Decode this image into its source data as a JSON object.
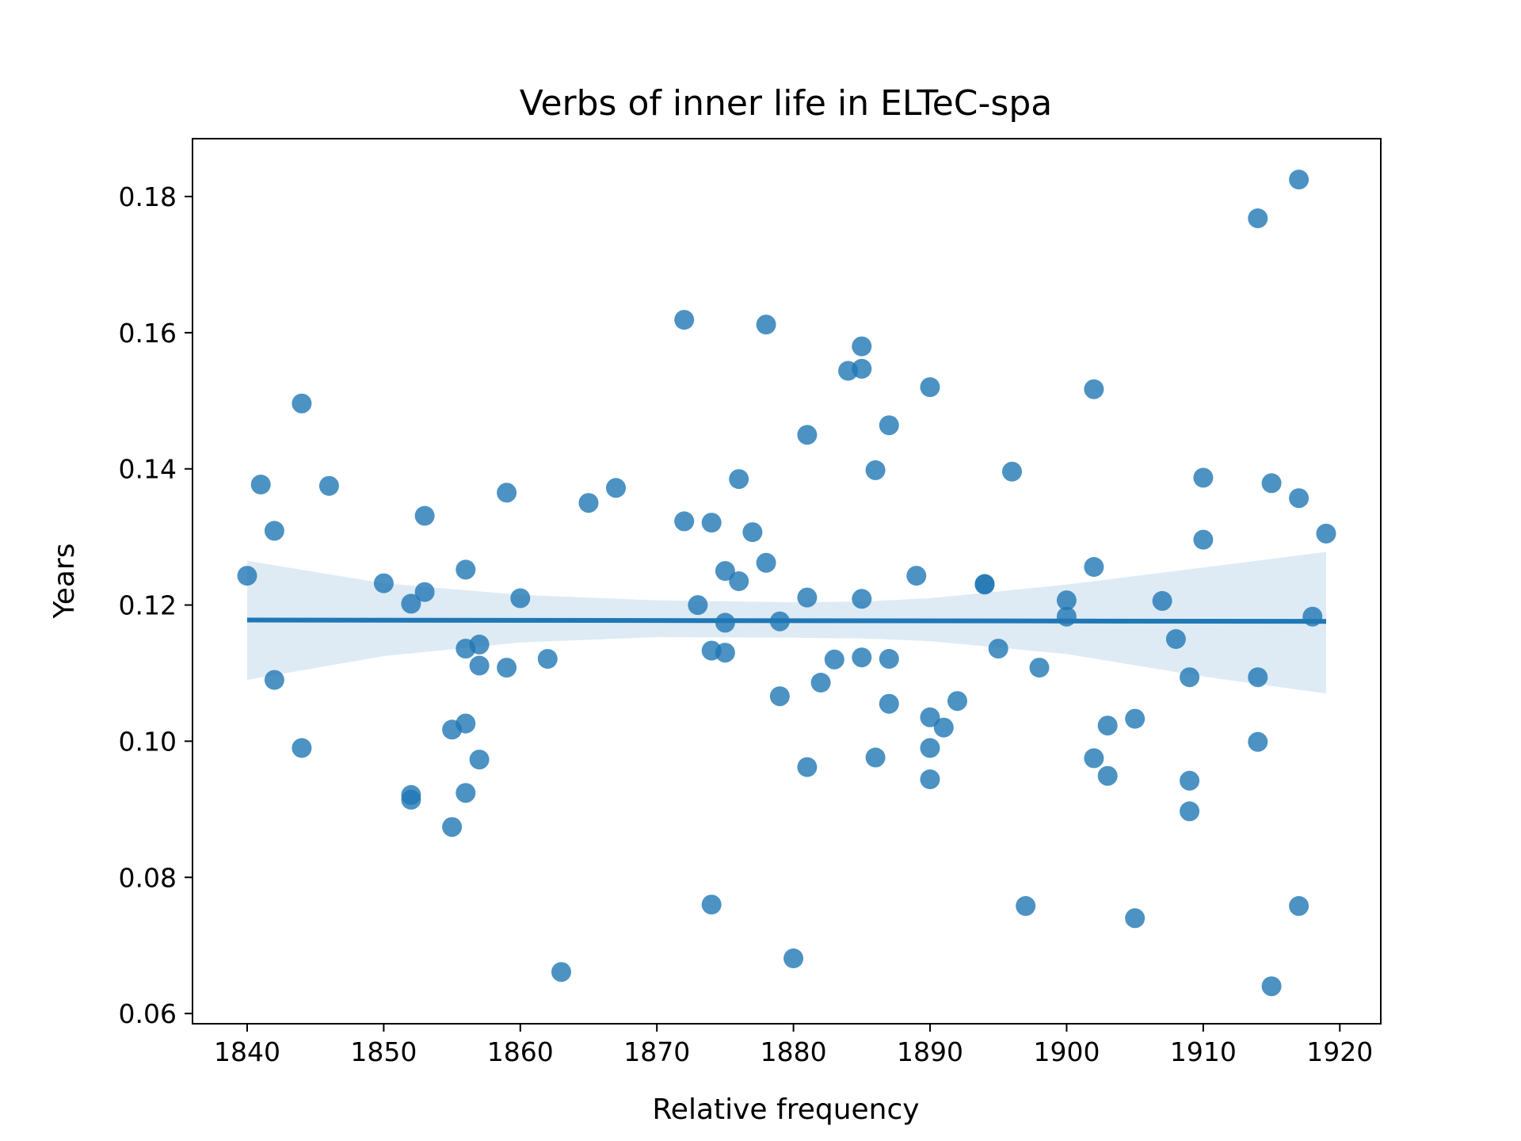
{
  "chart_data": {
    "type": "scatter",
    "title": "Verbs of inner life in ELTeC-spa",
    "xlabel": "Relative frequency",
    "ylabel": "Years",
    "xlim": [
      1836,
      1923
    ],
    "ylim": [
      0.0585,
      0.1885
    ],
    "xticks": [
      1840,
      1850,
      1860,
      1870,
      1880,
      1890,
      1900,
      1910,
      1920
    ],
    "yticks": [
      0.06,
      0.08,
      0.1,
      0.12,
      0.14,
      0.16,
      0.18
    ],
    "ytick_labels": [
      "0.06",
      "0.08",
      "0.10",
      "0.12",
      "0.14",
      "0.16",
      "0.18"
    ],
    "grid": false,
    "colors": {
      "points": "#1f77b4",
      "line": "#1f77b4",
      "band": "#1f77b4"
    },
    "regression": {
      "x": [
        1840,
        1919
      ],
      "y": [
        0.1178,
        0.1176
      ]
    },
    "confidence_band": {
      "x": [
        1840,
        1850,
        1860,
        1870,
        1880,
        1885,
        1890,
        1900,
        1910,
        1919
      ],
      "lower": [
        0.109,
        0.1125,
        0.1145,
        0.1153,
        0.1152,
        0.1151,
        0.1147,
        0.1128,
        0.1095,
        0.107
      ],
      "upper": [
        0.1265,
        0.1232,
        0.1215,
        0.1207,
        0.1204,
        0.1205,
        0.121,
        0.123,
        0.1255,
        0.1278
      ]
    },
    "points": [
      {
        "x": 1840,
        "y": 0.1243
      },
      {
        "x": 1841,
        "y": 0.1377
      },
      {
        "x": 1842,
        "y": 0.1309
      },
      {
        "x": 1842,
        "y": 0.109
      },
      {
        "x": 1844,
        "y": 0.1496
      },
      {
        "x": 1844,
        "y": 0.099
      },
      {
        "x": 1846,
        "y": 0.1375
      },
      {
        "x": 1850,
        "y": 0.1232
      },
      {
        "x": 1852,
        "y": 0.1202
      },
      {
        "x": 1852,
        "y": 0.0921
      },
      {
        "x": 1852,
        "y": 0.0914
      },
      {
        "x": 1853,
        "y": 0.1331
      },
      {
        "x": 1853,
        "y": 0.1219
      },
      {
        "x": 1855,
        "y": 0.1017
      },
      {
        "x": 1855,
        "y": 0.0874
      },
      {
        "x": 1856,
        "y": 0.1252
      },
      {
        "x": 1856,
        "y": 0.1136
      },
      {
        "x": 1856,
        "y": 0.1026
      },
      {
        "x": 1856,
        "y": 0.0924
      },
      {
        "x": 1857,
        "y": 0.1142
      },
      {
        "x": 1857,
        "y": 0.1111
      },
      {
        "x": 1857,
        "y": 0.0973
      },
      {
        "x": 1859,
        "y": 0.1365
      },
      {
        "x": 1859,
        "y": 0.1108
      },
      {
        "x": 1860,
        "y": 0.121
      },
      {
        "x": 1862,
        "y": 0.1121
      },
      {
        "x": 1863,
        "y": 0.0661
      },
      {
        "x": 1865,
        "y": 0.135
      },
      {
        "x": 1867,
        "y": 0.1372
      },
      {
        "x": 1872,
        "y": 0.1619
      },
      {
        "x": 1872,
        "y": 0.1323
      },
      {
        "x": 1873,
        "y": 0.12
      },
      {
        "x": 1874,
        "y": 0.1321
      },
      {
        "x": 1874,
        "y": 0.1133
      },
      {
        "x": 1874,
        "y": 0.076
      },
      {
        "x": 1875,
        "y": 0.125
      },
      {
        "x": 1875,
        "y": 0.1174
      },
      {
        "x": 1875,
        "y": 0.113
      },
      {
        "x": 1876,
        "y": 0.1385
      },
      {
        "x": 1876,
        "y": 0.1235
      },
      {
        "x": 1877,
        "y": 0.1307
      },
      {
        "x": 1878,
        "y": 0.1612
      },
      {
        "x": 1878,
        "y": 0.1262
      },
      {
        "x": 1879,
        "y": 0.1176
      },
      {
        "x": 1879,
        "y": 0.1066
      },
      {
        "x": 1880,
        "y": 0.0681
      },
      {
        "x": 1881,
        "y": 0.145
      },
      {
        "x": 1881,
        "y": 0.1211
      },
      {
        "x": 1881,
        "y": 0.0962
      },
      {
        "x": 1882,
        "y": 0.1086
      },
      {
        "x": 1883,
        "y": 0.112
      },
      {
        "x": 1884,
        "y": 0.1544
      },
      {
        "x": 1885,
        "y": 0.158
      },
      {
        "x": 1885,
        "y": 0.1547
      },
      {
        "x": 1885,
        "y": 0.1209
      },
      {
        "x": 1885,
        "y": 0.1123
      },
      {
        "x": 1886,
        "y": 0.1398
      },
      {
        "x": 1886,
        "y": 0.0976
      },
      {
        "x": 1887,
        "y": 0.1464
      },
      {
        "x": 1887,
        "y": 0.1121
      },
      {
        "x": 1887,
        "y": 0.1055
      },
      {
        "x": 1889,
        "y": 0.1243
      },
      {
        "x": 1890,
        "y": 0.152
      },
      {
        "x": 1890,
        "y": 0.1035
      },
      {
        "x": 1890,
        "y": 0.099
      },
      {
        "x": 1890,
        "y": 0.0944
      },
      {
        "x": 1891,
        "y": 0.102
      },
      {
        "x": 1892,
        "y": 0.1059
      },
      {
        "x": 1894,
        "y": 0.1231
      },
      {
        "x": 1894,
        "y": 0.123
      },
      {
        "x": 1895,
        "y": 0.1136
      },
      {
        "x": 1896,
        "y": 0.1396
      },
      {
        "x": 1897,
        "y": 0.0758
      },
      {
        "x": 1898,
        "y": 0.1108
      },
      {
        "x": 1900,
        "y": 0.1207
      },
      {
        "x": 1900,
        "y": 0.1183
      },
      {
        "x": 1902,
        "y": 0.1517
      },
      {
        "x": 1902,
        "y": 0.1256
      },
      {
        "x": 1902,
        "y": 0.0975
      },
      {
        "x": 1903,
        "y": 0.1023
      },
      {
        "x": 1903,
        "y": 0.0949
      },
      {
        "x": 1905,
        "y": 0.1033
      },
      {
        "x": 1905,
        "y": 0.074
      },
      {
        "x": 1907,
        "y": 0.1206
      },
      {
        "x": 1908,
        "y": 0.115
      },
      {
        "x": 1909,
        "y": 0.1094
      },
      {
        "x": 1909,
        "y": 0.0942
      },
      {
        "x": 1909,
        "y": 0.0897
      },
      {
        "x": 1910,
        "y": 0.1387
      },
      {
        "x": 1910,
        "y": 0.1296
      },
      {
        "x": 1914,
        "y": 0.1768
      },
      {
        "x": 1914,
        "y": 0.1094
      },
      {
        "x": 1914,
        "y": 0.0999
      },
      {
        "x": 1915,
        "y": 0.1379
      },
      {
        "x": 1915,
        "y": 0.064
      },
      {
        "x": 1917,
        "y": 0.1825
      },
      {
        "x": 1917,
        "y": 0.1357
      },
      {
        "x": 1917,
        "y": 0.0758
      },
      {
        "x": 1918,
        "y": 0.1183
      },
      {
        "x": 1919,
        "y": 0.1305
      }
    ]
  }
}
